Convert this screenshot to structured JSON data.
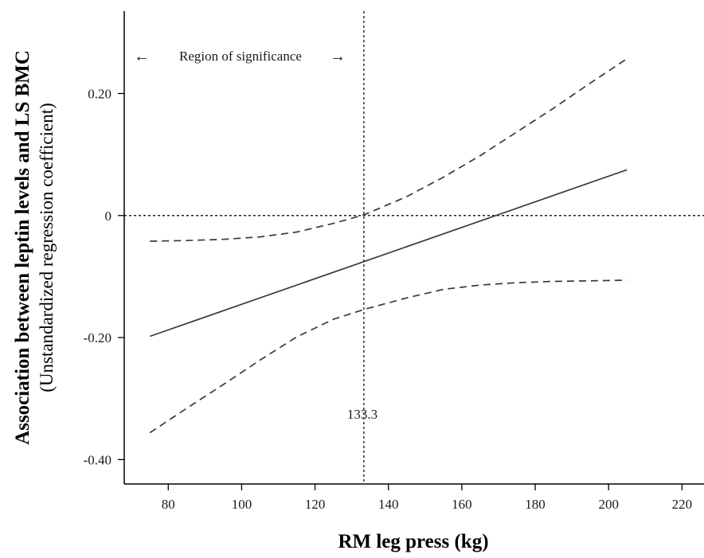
{
  "chart_data": {
    "type": "line",
    "xlabel": "RM leg press (kg)",
    "ylabel": "Association between leptin levels and LS BMC",
    "ylabel_sub": "(Unstandardized regression coefficient)",
    "xlim": [
      68,
      226
    ],
    "ylim": [
      -0.44,
      0.335
    ],
    "x_ticks": [
      80,
      100,
      120,
      140,
      160,
      180,
      200,
      220
    ],
    "y_ticks": [
      0.2,
      0,
      -0.2,
      -0.4
    ],
    "y_tick_labels": [
      "0.20",
      "0",
      "-0.20",
      "-0.40"
    ],
    "series": [
      {
        "role": "estimate",
        "style": "solid",
        "x": [
          75,
          205
        ],
        "y": [
          -0.198,
          0.075
        ]
      },
      {
        "role": "upper-ci",
        "style": "dashed",
        "x": [
          75,
          85,
          95,
          105,
          115,
          125,
          133.3,
          145,
          155,
          165,
          175,
          185,
          195,
          205
        ],
        "y": [
          -0.042,
          -0.041,
          -0.039,
          -0.035,
          -0.027,
          -0.013,
          0.001,
          0.031,
          0.063,
          0.098,
          0.137,
          0.176,
          0.217,
          0.257
        ]
      },
      {
        "role": "lower-ci",
        "style": "dashed",
        "x": [
          75,
          85,
          95,
          105,
          115,
          125,
          133.3,
          145,
          155,
          165,
          175,
          185,
          195,
          205
        ],
        "y": [
          -0.356,
          -0.316,
          -0.277,
          -0.237,
          -0.199,
          -0.17,
          -0.154,
          -0.135,
          -0.121,
          -0.114,
          -0.11,
          -0.108,
          -0.107,
          -0.106
        ]
      }
    ],
    "reference_lines": {
      "horizontal_y": 0,
      "vertical_x": 133.3
    },
    "annotations": {
      "vertical_label": "133.3",
      "region_label": "Region of significance",
      "arrow_left": "←",
      "arrow_right": "→"
    },
    "grid": false,
    "legend": "none"
  }
}
